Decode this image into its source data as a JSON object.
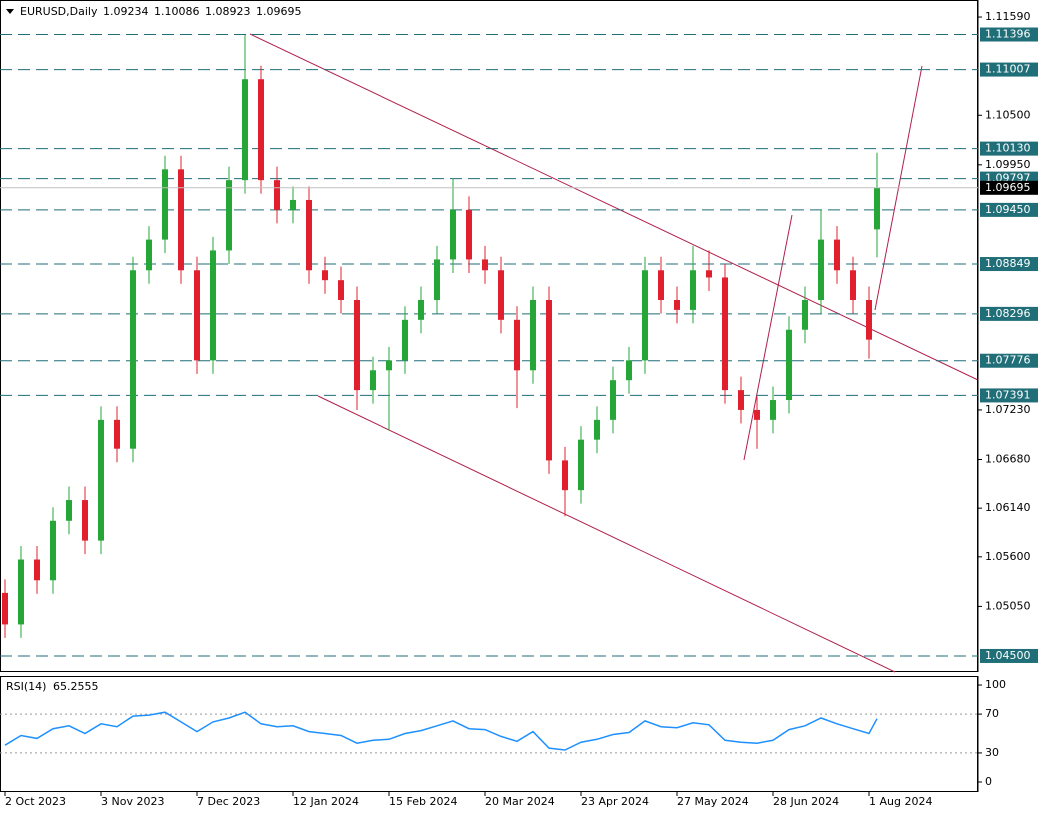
{
  "chart_data": [
    {
      "type": "candlestick",
      "title": "EURUSD,Daily",
      "x": [
        0,
        4,
        8,
        12,
        16,
        20,
        24,
        28,
        32,
        36,
        40,
        44,
        48,
        52,
        56,
        60,
        64,
        68,
        72,
        76,
        80,
        84,
        88,
        92,
        96,
        100,
        104,
        108,
        112,
        116,
        120,
        124,
        128,
        132,
        136,
        140,
        144,
        148,
        152,
        156,
        160,
        164,
        168,
        172,
        176,
        180,
        184,
        188,
        192,
        196,
        200,
        204,
        208,
        212,
        216,
        218
      ],
      "open": [
        1.052,
        1.0485,
        1.0557,
        1.0534,
        1.06,
        1.0623,
        1.0578,
        1.0712,
        1.068,
        1.0878,
        1.0912,
        1.099,
        1.0878,
        1.0778,
        1.09,
        1.0978,
        1.109,
        1.0978,
        1.0945,
        1.0956,
        1.0878,
        1.0867,
        1.0845,
        1.0745,
        1.0767,
        1.0778,
        1.0823,
        1.0845,
        1.089,
        1.0945,
        1.089,
        1.0878,
        1.0823,
        1.0767,
        1.0845,
        1.0667,
        1.0634,
        1.069,
        1.0712,
        1.0756,
        1.0778,
        1.0878,
        1.0845,
        1.0834,
        1.0878,
        1.087,
        1.0745,
        1.0723,
        1.0712,
        1.0734,
        1.0812,
        1.0845,
        1.0912,
        1.0878,
        1.0845,
        1.09234
      ],
      "high": [
        1.0535,
        1.0572,
        1.0572,
        1.0615,
        1.0638,
        1.0638,
        1.0727,
        1.0727,
        1.0893,
        1.0927,
        1.1005,
        1.1005,
        1.0893,
        1.0915,
        1.0993,
        1.1139,
        1.1105,
        1.0993,
        1.0971,
        1.0971,
        1.0893,
        1.0882,
        1.086,
        1.0782,
        1.0793,
        1.0838,
        1.086,
        1.0905,
        1.098,
        1.096,
        1.0905,
        1.0893,
        1.0838,
        1.086,
        1.086,
        1.0682,
        1.0705,
        1.0727,
        1.0771,
        1.0793,
        1.0893,
        1.0893,
        1.086,
        1.0905,
        1.09,
        1.0885,
        1.076,
        1.0738,
        1.0749,
        1.0827,
        1.086,
        1.0945,
        1.0927,
        1.0893,
        1.086,
        1.10086
      ],
      "low": [
        1.047,
        1.047,
        1.0519,
        1.0519,
        1.0585,
        1.0563,
        1.0563,
        1.0665,
        1.0665,
        1.0863,
        1.0897,
        1.0863,
        1.0763,
        1.0763,
        1.0885,
        1.0963,
        1.0963,
        1.093,
        1.093,
        1.0863,
        1.0852,
        1.083,
        1.0723,
        1.073,
        1.07,
        1.0763,
        1.0808,
        1.083,
        1.0875,
        1.0875,
        1.0863,
        1.0808,
        1.0725,
        1.0752,
        1.0652,
        1.0605,
        1.0619,
        1.0675,
        1.0697,
        1.0741,
        1.0763,
        1.083,
        1.0819,
        1.0819,
        1.0855,
        1.073,
        1.0708,
        1.068,
        1.0697,
        1.0719,
        1.0797,
        1.083,
        1.0863,
        1.083,
        1.078,
        1.08923
      ],
      "close": [
        1.0485,
        1.0557,
        1.0534,
        1.06,
        1.0623,
        1.0578,
        1.0712,
        1.068,
        1.0878,
        1.0912,
        1.099,
        1.0878,
        1.0778,
        1.09,
        1.0978,
        1.109,
        1.0978,
        1.0945,
        1.0956,
        1.0878,
        1.0867,
        1.0845,
        1.0745,
        1.0767,
        1.0778,
        1.0823,
        1.0845,
        1.089,
        1.0945,
        1.089,
        1.0878,
        1.0823,
        1.0767,
        1.0845,
        1.0667,
        1.0634,
        1.069,
        1.0712,
        1.0756,
        1.0778,
        1.0878,
        1.0845,
        1.0834,
        1.0878,
        1.087,
        1.0745,
        1.0723,
        1.0712,
        1.0734,
        1.0812,
        1.0845,
        1.0912,
        1.0878,
        1.0845,
        1.0801,
        1.09695
      ],
      "up_color": "#26a637",
      "down_color": "#e0202f",
      "xlim": [
        -1.25,
        243.25
      ],
      "xticks": [
        {
          "value": 0,
          "label": "2 Oct 2023"
        },
        {
          "value": 24,
          "label": "3 Nov 2023"
        },
        {
          "value": 48,
          "label": "7 Dec 2023"
        },
        {
          "value": 72,
          "label": "12 Jan 2024"
        },
        {
          "value": 96,
          "label": "15 Feb 2024"
        },
        {
          "value": 120,
          "label": "20 Mar 2024"
        },
        {
          "value": 144,
          "label": "23 Apr 2024"
        },
        {
          "value": 168,
          "label": "27 May 2024"
        },
        {
          "value": 192,
          "label": "28 Jun 2024"
        },
        {
          "value": 216,
          "label": "1 Aug 2024"
        }
      ],
      "ylim": [
        1.04322,
        1.11779
      ],
      "yticks": [
        {
          "value": 1.1159,
          "label": "1.11590"
        },
        {
          "value": 1.105,
          "label": "1.10500"
        },
        {
          "value": 1.0995,
          "label": "1.09950"
        },
        {
          "value": 1.0723,
          "label": "1.07230"
        },
        {
          "value": 1.0668,
          "label": "1.06680"
        },
        {
          "value": 1.0614,
          "label": "1.06140"
        },
        {
          "value": 1.056,
          "label": "1.05600"
        },
        {
          "value": 1.0505,
          "label": "1.05050"
        }
      ],
      "levels": [
        1.11396,
        1.11007,
        {
          "value": 1.1013,
          "label": "1.10130"
        },
        1.09797,
        {
          "value": 1.0945,
          "label": "1.09450"
        },
        1.08849,
        1.08296,
        1.07776,
        1.07391,
        {
          "value": 1.045,
          "label": "1.04500"
        }
      ],
      "level_color": "#1f6e78"
    },
    {
      "type": "line",
      "title": "RSI(14)",
      "values": [
        38,
        48,
        45,
        55,
        58,
        50,
        60,
        57,
        68,
        69,
        72,
        62,
        52,
        62,
        66,
        72,
        60,
        57,
        58,
        52,
        50,
        48,
        40,
        43,
        44,
        50,
        53,
        58,
        63,
        55,
        54,
        47,
        42,
        52,
        35,
        33,
        41,
        44,
        49,
        51,
        63,
        57,
        56,
        61,
        59,
        43,
        41,
        40,
        43,
        54,
        58,
        66,
        60,
        55,
        50,
        65.2555
      ],
      "color": "#1e90ff",
      "ylim": [
        -10.3,
        109.3
      ],
      "yticks": [
        100,
        70,
        30,
        0
      ],
      "levels": [
        70,
        30
      ]
    }
  ]
}
